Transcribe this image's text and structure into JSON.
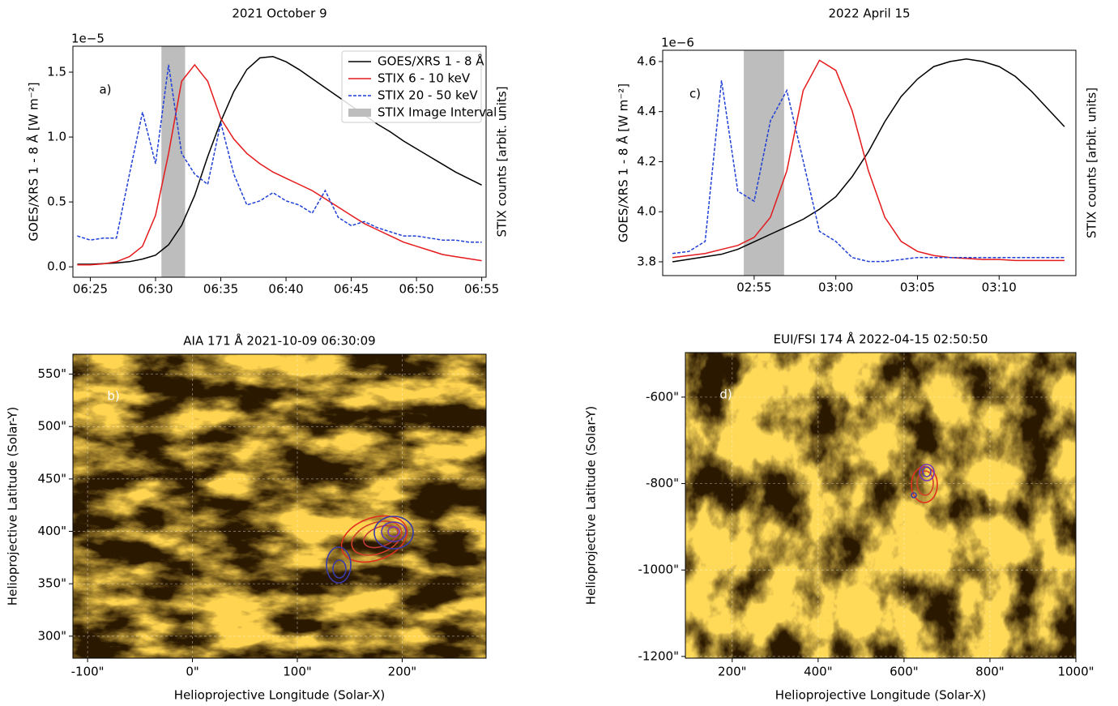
{
  "chart_data": [
    {
      "type": "line",
      "title": "2021 October 9",
      "panel_label": "a)",
      "ylabel": "GOES/XRS 1 - 8 Å [W m⁻²]",
      "y2label": "STIX counts [arbit. units]",
      "y_offset_label": "1e−5",
      "x": [
        "06:24",
        "06:25",
        "06:26",
        "06:27",
        "06:28",
        "06:29",
        "06:30",
        "06:31",
        "06:32",
        "06:33",
        "06:34",
        "06:35",
        "06:36",
        "06:37",
        "06:38",
        "06:39",
        "06:40",
        "06:41",
        "06:42",
        "06:43",
        "06:44",
        "06:45",
        "06:46",
        "06:47",
        "06:48",
        "06:49",
        "06:50",
        "06:51",
        "06:52",
        "06:53",
        "06:54",
        "06:55"
      ],
      "xlim": [
        "06:23:40",
        "06:55:20"
      ],
      "xticks": [
        "06:25",
        "06:30",
        "06:35",
        "06:40",
        "06:45",
        "06:50",
        "06:55"
      ],
      "ylim": [
        -0.08,
        1.7
      ],
      "yticks": [
        {
          "value": 0,
          "label": "0.0"
        },
        0.5,
        {
          "value": 1,
          "label": "1.0"
        },
        1.5
      ],
      "y2lim": [
        -0.05,
        1.07
      ],
      "legend": "upper right",
      "span": {
        "name": "STIX Image Interval",
        "x": [
          "06:30:27",
          "06:32:16"
        ],
        "color": "#bdbdbd"
      },
      "series": [
        {
          "name": "GOES/XRS 1 - 8 Å",
          "color": "#000000",
          "linestyle": "solid",
          "values": [
            0.02,
            0.02,
            0.025,
            0.03,
            0.04,
            0.06,
            0.09,
            0.17,
            0.32,
            0.55,
            0.85,
            1.12,
            1.35,
            1.52,
            1.61,
            1.62,
            1.58,
            1.52,
            1.45,
            1.38,
            1.31,
            1.24,
            1.17,
            1.1,
            1.04,
            0.97,
            0.91,
            0.85,
            0.79,
            0.73,
            0.68,
            0.63
          ]
        },
        {
          "name": "STIX 6 - 10 keV",
          "color": "#e41a1c",
          "linestyle": "solid",
          "axis": "y2",
          "values": [
            0.01,
            0.01,
            0.015,
            0.025,
            0.05,
            0.1,
            0.25,
            0.55,
            0.9,
            0.98,
            0.9,
            0.72,
            0.62,
            0.55,
            0.5,
            0.46,
            0.43,
            0.4,
            0.37,
            0.33,
            0.29,
            0.25,
            0.21,
            0.18,
            0.15,
            0.12,
            0.1,
            0.08,
            0.06,
            0.05,
            0.04,
            0.03
          ]
        },
        {
          "name": "STIX 20 - 50 keV",
          "color": "#1f3fd6",
          "linestyle": "dashed",
          "axis": "y2",
          "values": [
            0.15,
            0.13,
            0.14,
            0.14,
            0.45,
            0.75,
            0.5,
            0.98,
            0.55,
            0.45,
            0.4,
            0.7,
            0.45,
            0.3,
            0.32,
            0.36,
            0.32,
            0.3,
            0.26,
            0.37,
            0.24,
            0.2,
            0.22,
            0.19,
            0.17,
            0.15,
            0.15,
            0.14,
            0.13,
            0.13,
            0.12,
            0.12
          ]
        }
      ]
    },
    {
      "type": "line",
      "title": "2022 April 15",
      "panel_label": "c)",
      "ylabel": "GOES/XRS 1 - 8 Å [W m⁻²]",
      "y2label": "STIX counts [arbit. units]",
      "y_offset_label": "1e−6",
      "x": [
        "02:50",
        "02:51",
        "02:52",
        "02:53",
        "02:54",
        "02:55",
        "02:56",
        "02:57",
        "02:58",
        "02:59",
        "03:00",
        "03:01",
        "03:02",
        "03:03",
        "03:04",
        "03:05",
        "03:06",
        "03:07",
        "03:08",
        "03:09",
        "03:10",
        "03:11",
        "03:12",
        "03:13",
        "03:14"
      ],
      "xlim": [
        "02:49:24",
        "03:14:42"
      ],
      "xticks": [
        "02:55",
        "03:00",
        "03:05",
        "03:10"
      ],
      "ylim": [
        3.745,
        4.645
      ],
      "yticks": [
        3.8,
        {
          "value": 4,
          "label": "4.0"
        },
        4.2,
        4.4,
        4.6
      ],
      "y2lim": [
        -0.07,
        1.05
      ],
      "legend": false,
      "span": {
        "name": "STIX Image Interval",
        "x": [
          "02:54:22",
          "02:56:50"
        ],
        "color": "#bdbdbd"
      },
      "series": [
        {
          "name": "GOES/XRS 1 - 8 Å",
          "color": "#000000",
          "linestyle": "solid",
          "values": [
            3.8,
            3.81,
            3.82,
            3.83,
            3.85,
            3.88,
            3.91,
            3.94,
            3.97,
            4.01,
            4.06,
            4.14,
            4.24,
            4.36,
            4.46,
            4.53,
            4.58,
            4.6,
            4.61,
            4.6,
            4.58,
            4.54,
            4.48,
            4.41,
            4.34
          ]
        },
        {
          "name": "STIX 6 - 10 keV",
          "color": "#e41a1c",
          "linestyle": "solid",
          "axis": "y2",
          "values": [
            0.02,
            0.03,
            0.04,
            0.06,
            0.08,
            0.12,
            0.22,
            0.45,
            0.85,
            1.0,
            0.95,
            0.75,
            0.45,
            0.22,
            0.1,
            0.05,
            0.03,
            0.02,
            0.015,
            0.01,
            0.01,
            0.005,
            0.005,
            0.005,
            0.005
          ]
        },
        {
          "name": "STIX 20 - 50 keV",
          "color": "#1f3fd6",
          "linestyle": "dashed",
          "axis": "y2",
          "values": [
            0.04,
            0.05,
            0.1,
            0.9,
            0.35,
            0.3,
            0.7,
            0.85,
            0.5,
            0.15,
            0.1,
            0.02,
            0.0,
            0.0,
            0.01,
            0.02,
            0.02,
            0.02,
            0.02,
            0.02,
            0.02,
            0.02,
            0.02,
            0.02,
            0.02
          ]
        }
      ]
    },
    {
      "type": "image",
      "title": "AIA 171 Å 2021-10-09 06:30:09",
      "panel_label": "b)",
      "xlabel": "Helioprojective Longitude (Solar-X)",
      "ylabel": "Helioprojective Latitude (Solar-Y)",
      "xlim": [
        -114,
        280
      ],
      "ylim": [
        279,
        569
      ],
      "grid": true,
      "xticks": [
        {
          "value": -100,
          "label": "-100\""
        },
        {
          "value": 0,
          "label": "0\""
        },
        {
          "value": 100,
          "label": "100\""
        },
        {
          "value": 200,
          "label": "200\""
        }
      ],
      "yticks": [
        {
          "value": 300,
          "label": "300\""
        },
        {
          "value": 350,
          "label": "350\""
        },
        {
          "value": 400,
          "label": "400\""
        },
        {
          "value": 450,
          "label": "450\""
        },
        {
          "value": 500,
          "label": "500\""
        },
        {
          "value": 550,
          "label": "550\""
        }
      ]
    },
    {
      "type": "image",
      "title": "EUI/FSI 174 Å 2022-04-15 02:50:50",
      "panel_label": "d)",
      "xlabel": "Helioprojective Longitude (Solar-X)",
      "ylabel": "Helioprojective Latitude (Solar-Y)",
      "xlim": [
        91,
        1000
      ],
      "ylim": [
        -1204,
        -497
      ],
      "grid": true,
      "xticks": [
        {
          "value": 200,
          "label": "200\""
        },
        {
          "value": 400,
          "label": "400\""
        },
        {
          "value": 600,
          "label": "600\""
        },
        {
          "value": 800,
          "label": "800\""
        },
        {
          "value": 1000,
          "label": "1000\""
        }
      ],
      "yticks": [
        {
          "value": -1200,
          "label": "-1200\""
        },
        {
          "value": -1000,
          "label": "-1000\""
        },
        {
          "value": -800,
          "label": "-800\""
        },
        {
          "value": -600,
          "label": "-600\""
        }
      ]
    }
  ]
}
